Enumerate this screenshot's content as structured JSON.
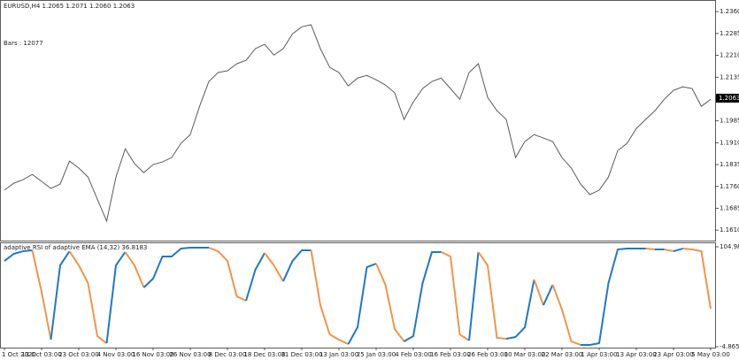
{
  "chart_data": [
    {
      "type": "line",
      "title": "EURUSD,H4  1.2065 1.2071 1.2060 1.2063",
      "annotation": "Bars : 12077",
      "color": "#5a5a5a",
      "last_price": 1.2063,
      "ylim": [
        1.1574,
        1.24
      ],
      "yticks": [
        {
          "value": 1.236,
          "label": "1.2360"
        },
        1.2285,
        {
          "value": 1.221,
          "label": "1.2210"
        },
        1.2135,
        1.1985,
        {
          "value": 1.191,
          "label": "1.1910"
        },
        1.1835,
        {
          "value": 1.176,
          "label": "1.1760"
        },
        1.1685,
        {
          "value": 1.161,
          "label": "1.1610"
        }
      ],
      "series": [
        {
          "values": [
            1.1747,
            1.1771,
            1.1783,
            1.1801,
            1.1777,
            1.1753,
            1.1768,
            1.1847,
            1.1823,
            1.1792,
            1.1716,
            1.1641,
            1.1792,
            1.1889,
            1.1838,
            1.1807,
            1.1835,
            1.1844,
            1.1859,
            1.1908,
            1.1938,
            1.2035,
            1.212,
            1.2151,
            1.2157,
            1.2181,
            1.2193,
            1.2233,
            1.2248,
            1.2211,
            1.2233,
            1.2284,
            1.2308,
            1.2315,
            1.2233,
            1.2169,
            1.2151,
            1.2105,
            1.2132,
            1.2141,
            1.2126,
            1.2108,
            1.2081,
            1.199,
            1.205,
            1.2096,
            1.212,
            1.2132,
            1.2096,
            1.2059,
            1.2151,
            1.2181,
            1.2066,
            1.202,
            1.199,
            1.1859,
            1.1914,
            1.1938,
            1.1926,
            1.1914,
            1.1859,
            1.1823,
            1.1768,
            1.1732,
            1.1747,
            1.1792,
            1.1883,
            1.1908,
            1.1959,
            1.199,
            1.202,
            1.2059,
            1.209,
            1.2102,
            1.2096,
            1.2035,
            1.2059
          ]
        }
      ]
    },
    {
      "type": "line",
      "title": "adaptive RSI of adaptive EMA (14,32) 36.8183",
      "up_color": "#1f78c8",
      "down_color": "#f0954a",
      "ylim": [
        -5.84,
        109.85
      ],
      "yticks": [
        104.9844,
        -4.8653
      ],
      "categories": [
        "1 Oct 2020",
        null,
        null,
        null,
        "13 Oct 03:00",
        null,
        null,
        null,
        "23 Oct 03:00",
        null,
        null,
        null,
        "4 Nov 03:00",
        null,
        null,
        null,
        "16 Nov 03:00",
        null,
        null,
        null,
        "26 Nov 03:00",
        null,
        null,
        null,
        "8 Dec 03:00",
        null,
        null,
        null,
        "18 Dec 03:00",
        null,
        null,
        null,
        "31 Dec 03:00",
        null,
        null,
        null,
        "13 Jan 03:00",
        null,
        null,
        null,
        "25 Jan 03:00",
        null,
        null,
        null,
        "4 Feb 03:00",
        null,
        null,
        null,
        "16 Feb 03:00",
        null,
        null,
        null,
        "26 Feb 03:00",
        null,
        null,
        null,
        "10 Mar 03:00",
        null,
        null,
        null,
        "22 Mar 03:00",
        null,
        null,
        null,
        "1 Apr 03:00",
        null,
        null,
        null,
        "13 Apr 03:00",
        null,
        null,
        null,
        "23 Apr 03:00",
        null,
        null,
        null,
        "5 May 03:00"
      ],
      "series": [
        {
          "values": [
            89.4,
            97.2,
            100.1,
            101.1,
            55.4,
            2.9,
            84.6,
            100.1,
            84.6,
            65.1,
            6.8,
            -1.0,
            84.6,
            99.2,
            84.6,
            60.3,
            70.0,
            94.3,
            94.3,
            103.0,
            104.0,
            104.0,
            104.0,
            100.1,
            89.4,
            50.5,
            45.7,
            79.7,
            98.2,
            84.6,
            67.1,
            89.4,
            101.1,
            101.1,
            40.8,
            8.7,
            2.9,
            -2.0,
            16.5,
            82.6,
            86.5,
            63.2,
            14.6,
            1.0,
            6.8,
            65.1,
            99.2,
            99.2,
            94.3,
            8.7,
            1.9,
            99.2,
            84.6,
            4.9,
            3.9,
            5.8,
            16.5,
            69.0,
            40.8,
            63.2,
            36.0,
            1.0,
            -2.9,
            -2.9,
            -1.0,
            65.1,
            102.1,
            103.0,
            103.0,
            103.0,
            102.1,
            102.1,
            100.1,
            103.0,
            102.1,
            100.1,
            36.8
          ]
        }
      ]
    }
  ]
}
